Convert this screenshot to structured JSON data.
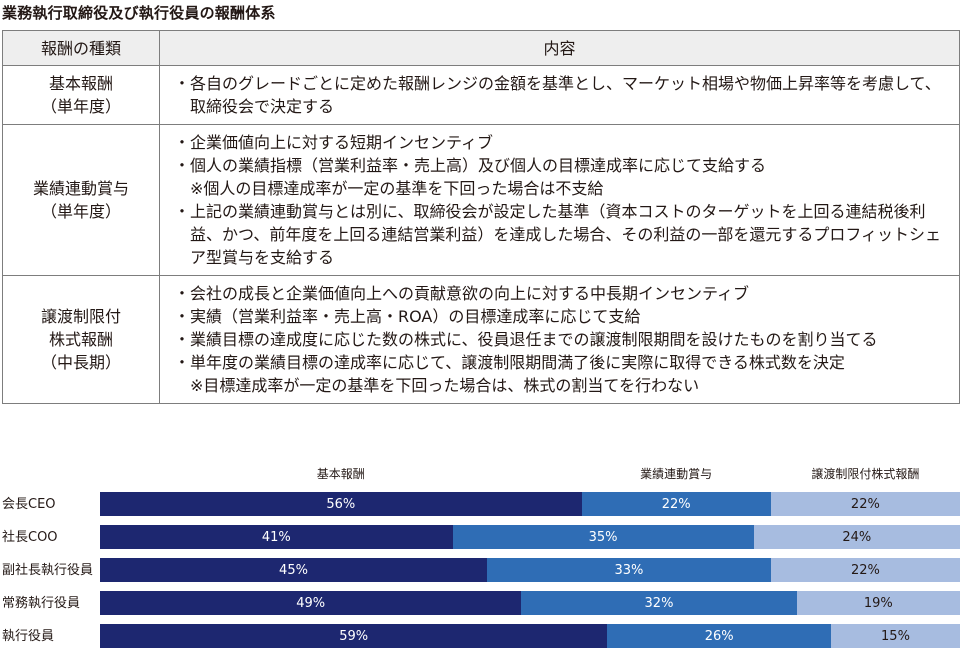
{
  "title": "業務執行取締役及び執行役員の報酬体系",
  "table": {
    "headers": [
      "報酬の種類",
      "内容"
    ],
    "rows": [
      {
        "type_lines": [
          "基本報酬",
          "（単年度）"
        ],
        "items": [
          {
            "kind": "bullet",
            "text": "各自のグレードごとに定めた報酬レンジの金額を基準とし、マーケット相場や物価上昇率等を考慮して、取締役会で決定する"
          }
        ]
      },
      {
        "type_lines": [
          "業績連動賞与",
          "（単年度）"
        ],
        "items": [
          {
            "kind": "bullet",
            "text": "企業価値向上に対する短期インセンティブ"
          },
          {
            "kind": "bullet",
            "text": "個人の業績指標（営業利益率・売上高）及び個人の目標達成率に応じて支給する"
          },
          {
            "kind": "note",
            "text": "※個人の目標達成率が一定の基準を下回った場合は不支給"
          },
          {
            "kind": "bullet",
            "text": "上記の業績連動賞与とは別に、取締役会が設定した基準（資本コストのターゲットを上回る連結税後利益、かつ、前年度を上回る連結営業利益）を達成した場合、その利益の一部を還元するプロフィットシェア型賞与を支給する"
          }
        ]
      },
      {
        "type_lines": [
          "譲渡制限付",
          "株式報酬",
          "（中長期）"
        ],
        "items": [
          {
            "kind": "bullet",
            "text": "会社の成長と企業価値向上への貢献意欲の向上に対する中長期インセンティブ"
          },
          {
            "kind": "bullet",
            "text": "実績（営業利益率・売上高・ROA）の目標達成率に応じて支給"
          },
          {
            "kind": "bullet",
            "text": "業績目標の達成度に応じた数の株式に、役員退任までの譲渡制限期間を設けたものを割り当てる"
          },
          {
            "kind": "bullet",
            "text": "単年度の業績目標の達成率に応じて、譲渡制限期間満了後に実際に取得できる株式数を決定"
          },
          {
            "kind": "note",
            "text": "※目標達成率が一定の基準を下回った場合は、株式の割当てを行わない"
          }
        ]
      }
    ],
    "bullet_mark": "・"
  },
  "chart_data": {
    "type": "bar",
    "orientation": "horizontal",
    "stacked": true,
    "categories": [
      "会長CEO",
      "社長COO",
      "副社長執行役員",
      "常務執行役員",
      "執行役員"
    ],
    "series": [
      {
        "name": "基本報酬",
        "values": [
          56,
          41,
          45,
          49,
          59
        ],
        "color": "#1d2770"
      },
      {
        "name": "業績連動賞与",
        "values": [
          22,
          35,
          33,
          32,
          26
        ],
        "color": "#2f6db5"
      },
      {
        "name": "譲渡制限付株式報酬",
        "values": [
          22,
          24,
          22,
          19,
          15
        ],
        "color": "#a7bce0"
      }
    ],
    "legend_placement": "top",
    "value_suffix": "%"
  }
}
